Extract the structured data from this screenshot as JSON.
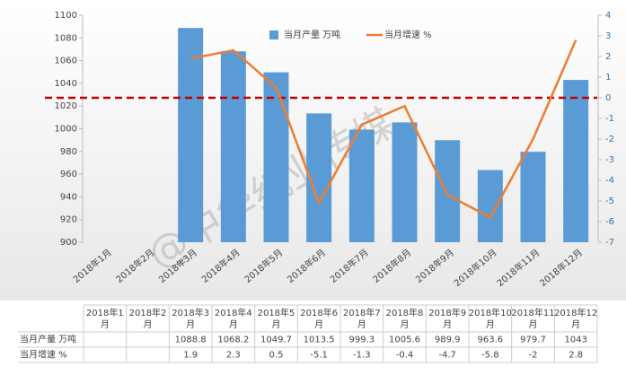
{
  "chart_data": {
    "type": "bar-line",
    "watermark": "@中华纸业传媒",
    "categories": [
      "2018年1月",
      "2018年2月",
      "2018年3月",
      "2018年4月",
      "2018年5月",
      "2018年6月",
      "2018年7月",
      "2018年8月",
      "2018年9月",
      "2018年10月",
      "2018年11月",
      "2018年12月"
    ],
    "series": [
      {
        "name": "当月产量 万吨",
        "type": "bar",
        "color": "#5b9bd5",
        "values": [
          null,
          null,
          1088.8,
          1068.2,
          1049.7,
          1013.5,
          999.3,
          1005.6,
          989.9,
          963.6,
          979.7,
          1043
        ]
      },
      {
        "name": "当月增速 %",
        "type": "line",
        "axis": "y2",
        "color": "#ed7d31",
        "values": [
          null,
          null,
          1.9,
          2.3,
          0.5,
          -5.1,
          -1.3,
          -0.4,
          -4.7,
          -5.8,
          -2,
          2.8
        ]
      }
    ],
    "ylim": [
      900,
      1100
    ],
    "yticks": [
      900,
      920,
      940,
      960,
      980,
      1000,
      1020,
      1040,
      1060,
      1080,
      1100
    ],
    "y2lim": [
      -7,
      4
    ],
    "y2ticks": [
      -7,
      -6,
      -5,
      -4,
      -3,
      -2,
      -1,
      0,
      1,
      2,
      3,
      4
    ],
    "reference_line": {
      "axis": "y2",
      "value": 0,
      "color": "#c00000"
    },
    "data_table": true
  }
}
